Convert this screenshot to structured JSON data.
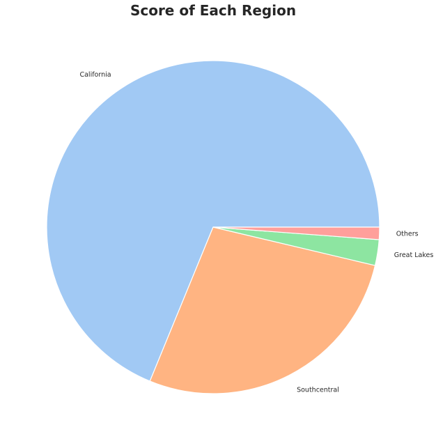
{
  "chart_data": {
    "type": "pie",
    "title": "Score of Each Region",
    "labels": [
      "California",
      "Southcentral",
      "Great Lakes",
      "Others"
    ],
    "values": [
      68.8,
      27.5,
      2.5,
      1.2
    ],
    "colors": [
      "#a1c9f4",
      "#ffb482",
      "#8de5a1",
      "#ff9f9b"
    ],
    "start_angle_deg": 0,
    "direction": "counterclockwise",
    "edge_color": "#ffffff"
  }
}
